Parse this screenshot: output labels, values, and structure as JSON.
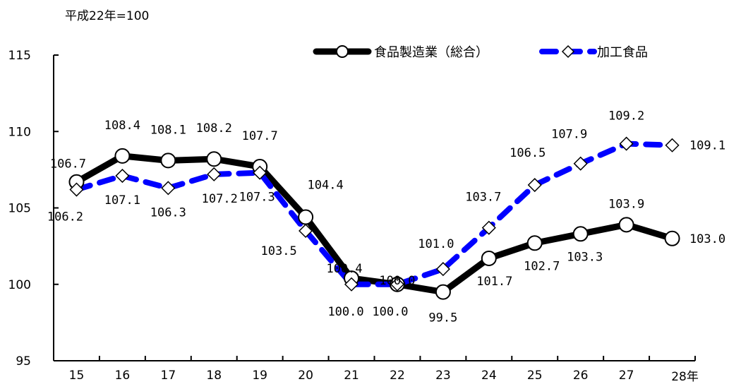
{
  "chart_data": {
    "type": "line",
    "unit_note": "平成22年=100",
    "categories": [
      "15",
      "16",
      "17",
      "18",
      "19",
      "20",
      "21",
      "22",
      "23",
      "24",
      "25",
      "26",
      "27",
      "28年"
    ],
    "ylim": [
      95,
      115
    ],
    "yticks": [
      95,
      100,
      105,
      110,
      115
    ],
    "grid": false,
    "legend_position": "top-right",
    "series": [
      {
        "name": "食品製造業（総合）",
        "color": "#000000",
        "marker": "circle",
        "style": "solid",
        "values": [
          106.7,
          108.4,
          108.1,
          108.2,
          107.7,
          104.4,
          100.4,
          100.0,
          99.5,
          101.7,
          102.7,
          103.3,
          103.9,
          103.0
        ],
        "labels": [
          "106.7",
          "108.4",
          "108.1",
          "108.2",
          "107.7",
          "104.4",
          "100.4",
          "100.0",
          "99.5",
          "101.7",
          "102.7",
          "103.3",
          "103.9",
          "103.0"
        ]
      },
      {
        "name": "加工食品",
        "color": "#0000ff",
        "marker": "diamond",
        "style": "dashed",
        "values": [
          106.2,
          107.1,
          106.3,
          107.2,
          107.3,
          103.5,
          100.0,
          100.0,
          101.0,
          103.7,
          106.5,
          107.9,
          109.2,
          109.1
        ],
        "labels": [
          "106.2",
          "107.1",
          "106.3",
          "107.2",
          "107.3",
          "103.5",
          "100.0",
          "100.0",
          "101.0",
          "103.7",
          "106.5",
          "107.9",
          "109.2",
          "109.1"
        ]
      }
    ]
  }
}
